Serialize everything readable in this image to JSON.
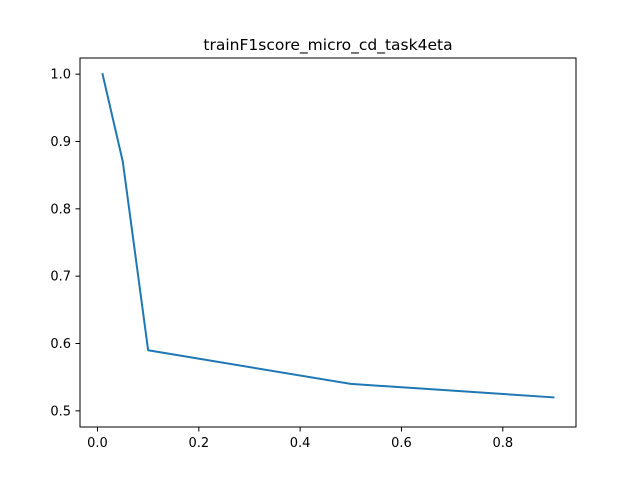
{
  "chart_data": {
    "type": "line",
    "title": "trainF1score_micro_cd_task4eta",
    "xlabel": "",
    "ylabel": "",
    "xlim": [
      -0.0345,
      0.9445
    ],
    "ylim": [
      0.476,
      1.024
    ],
    "xticks": [
      {
        "value": 0.0,
        "label": "0.0"
      },
      {
        "value": 0.2,
        "label": "0.2"
      },
      {
        "value": 0.4,
        "label": "0.4"
      },
      {
        "value": 0.6,
        "label": "0.6"
      },
      {
        "value": 0.8,
        "label": "0.8"
      }
    ],
    "yticks": [
      {
        "value": 0.5,
        "label": "0.5"
      },
      {
        "value": 0.6,
        "label": "0.6"
      },
      {
        "value": 0.7,
        "label": "0.7"
      },
      {
        "value": 0.8,
        "label": "0.8"
      },
      {
        "value": 0.9,
        "label": "0.9"
      },
      {
        "value": 1.0,
        "label": "1.0"
      }
    ],
    "grid": false,
    "legend": "none",
    "series": [
      {
        "color": "#1f77b4",
        "x": [
          0.01,
          0.05,
          0.1,
          0.5,
          0.9
        ],
        "y": [
          1.0,
          0.87,
          0.59,
          0.54,
          0.52
        ]
      }
    ]
  }
}
